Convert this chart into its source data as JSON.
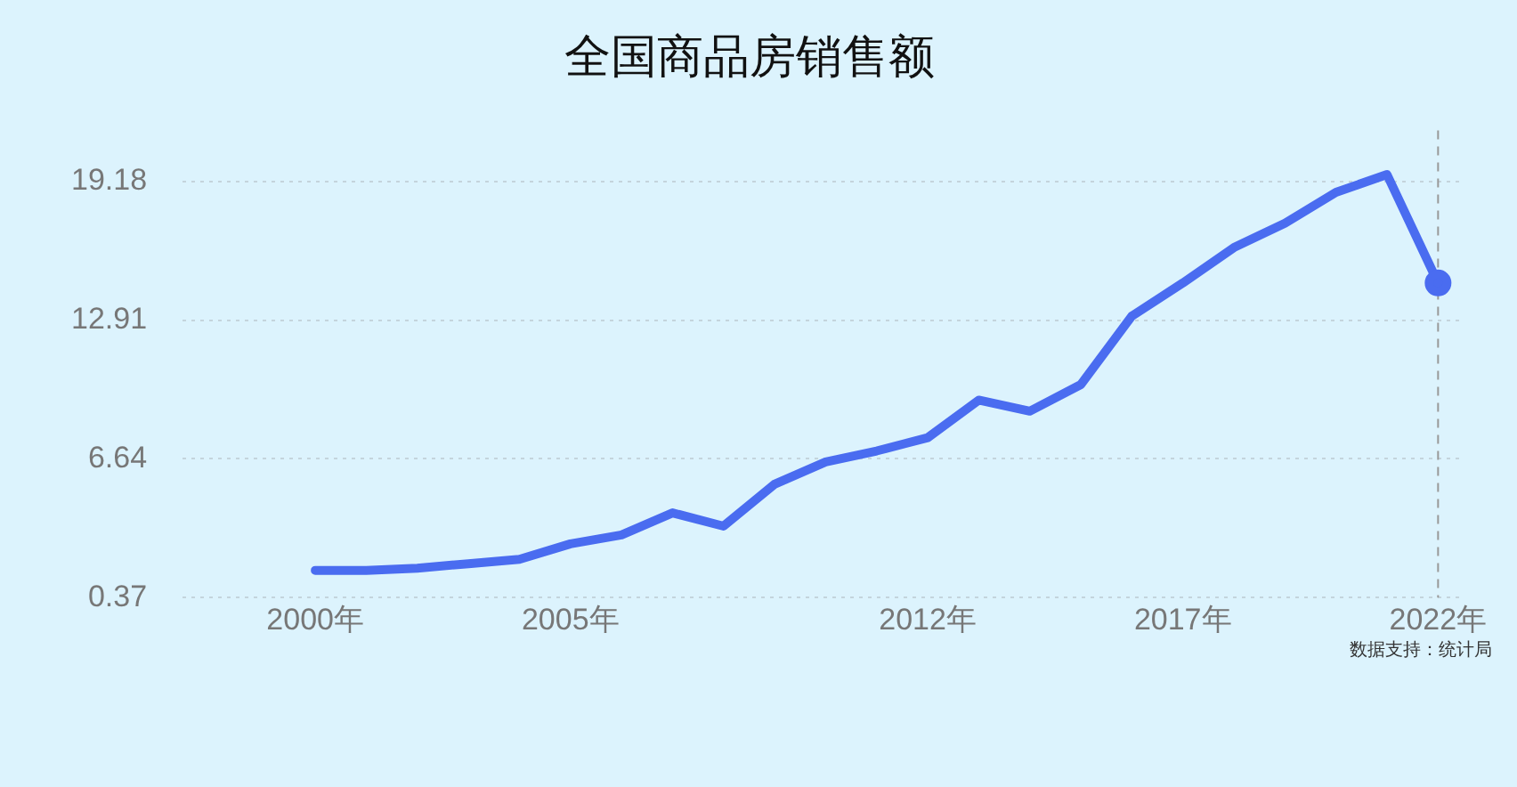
{
  "chart_data": {
    "type": "line",
    "title": "全国商品房销售额",
    "x": [
      2000,
      2001,
      2002,
      2003,
      2004,
      2005,
      2006,
      2007,
      2008,
      2009,
      2010,
      2011,
      2012,
      2013,
      2014,
      2015,
      2016,
      2017,
      2018,
      2019,
      2020,
      2021,
      2022
    ],
    "series": [
      {
        "color": "#4a6cf0",
        "values": [
          1.6,
          1.6,
          1.7,
          1.9,
          2.1,
          2.8,
          3.2,
          4.2,
          3.6,
          5.5,
          6.5,
          7,
          7.6,
          9.3,
          8.8,
          10,
          13.1,
          14.6,
          16.2,
          17.3,
          18.7,
          19.5,
          14.6
        ]
      }
    ],
    "xlim": [
      1997.4,
      2022.5
    ],
    "xticks": [
      {
        "value": 2000,
        "label": "2000年"
      },
      {
        "value": 2005,
        "label": "2005年"
      },
      {
        "value": 2012,
        "label": "2012年"
      },
      {
        "value": 2017,
        "label": "2017年"
      },
      {
        "value": 2022,
        "label": "2022年"
      }
    ],
    "ylim": [
      0.37,
      21.5
    ],
    "yticks": [
      0.37,
      6.64,
      12.91,
      19.18
    ],
    "grid": "y",
    "legend": false,
    "ref_lines": [
      {
        "axis": "x",
        "value": 2022,
        "color": "#999999",
        "line_style": "dashed"
      }
    ],
    "annotations": [
      "数据支持：统计局"
    ]
  }
}
